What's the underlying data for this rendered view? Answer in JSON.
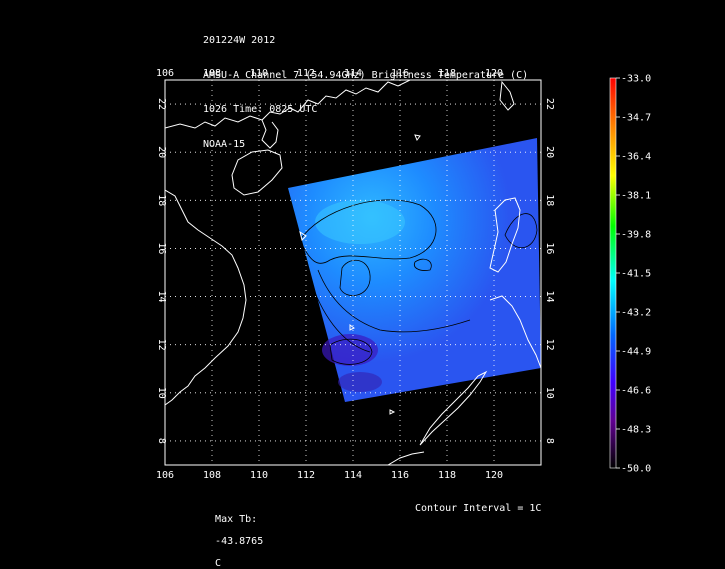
{
  "title_lines": [
    "201224W 2012",
    "AMSU-A Channel 7 (54.94GHz) Brightness Temperature (C)",
    "1026 Time: 0825 UTC",
    "NOAA-15"
  ],
  "map": {
    "lon_range": [
      106,
      122
    ],
    "lat_range": [
      7,
      23
    ],
    "lon_ticks": [
      "106",
      "108",
      "110",
      "112",
      "114",
      "116",
      "118",
      "120"
    ],
    "lat_ticks": [
      "8",
      "10",
      "12",
      "14",
      "16",
      "18",
      "20",
      "22"
    ],
    "grid": true,
    "swath_color": "#2a55f0",
    "coast_color": "#ffffff"
  },
  "colorbar": {
    "labels": [
      "-33.0",
      "-34.7",
      "-36.4",
      "-38.1",
      "-39.8",
      "-41.5",
      "-43.2",
      "-44.9",
      "-46.6",
      "-48.3",
      "-50.0"
    ]
  },
  "footer": {
    "max_label": "Max Tb:",
    "max_value": "-43.8765",
    "max_unit": "C",
    "contour_label": "Contour Interval = 1C"
  }
}
